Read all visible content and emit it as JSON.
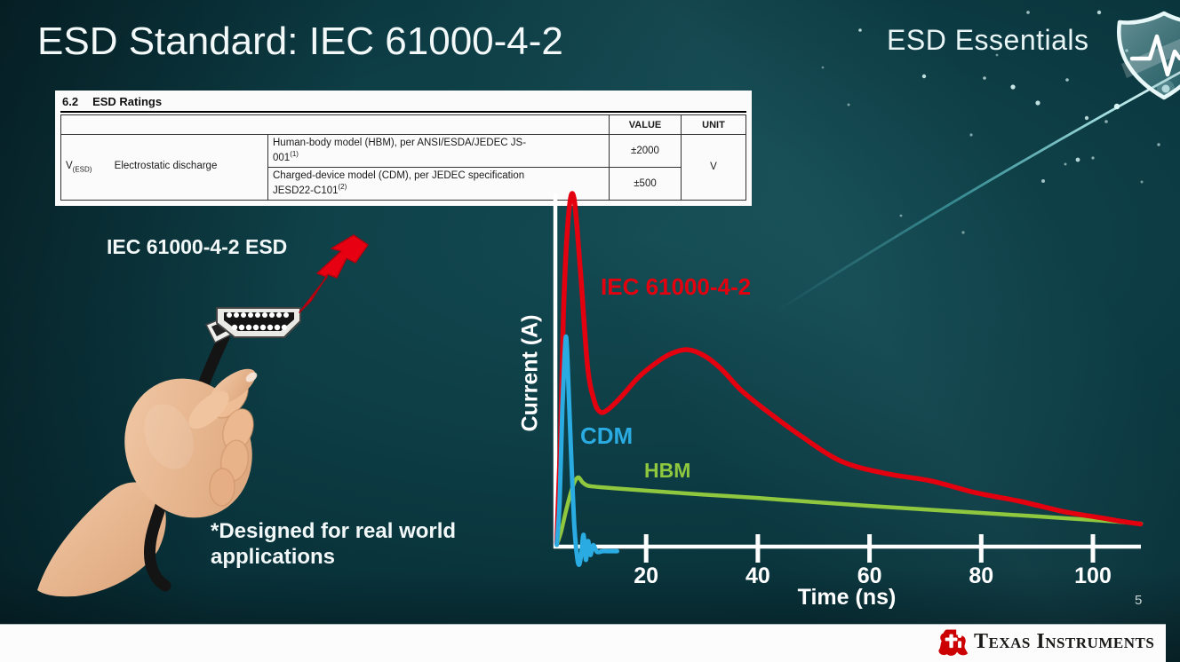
{
  "slide": {
    "title": "ESD Standard: IEC 61000-4-2",
    "program_badge": "ESD Essentials",
    "page_number": "5",
    "footnote_line1": "*Designed for real world",
    "footnote_line2": "applications",
    "footer_brand": "Texas Instruments"
  },
  "ratings_table": {
    "section": "6.2",
    "section_title": "ESD Ratings",
    "col_headers": [
      "VALUE",
      "UNIT"
    ],
    "symbol": "V",
    "symbol_sub": "(ESD)",
    "row_label": "Electrostatic discharge",
    "rows": [
      {
        "description": "Human-body model (HBM), per ANSI/ESDA/JEDEC JS-001",
        "sup": "(1)",
        "value": "±2000"
      },
      {
        "description": "Charged-device model (CDM), per JEDEC specification JESD22-C101",
        "sup": "(2)",
        "value": "±500"
      }
    ],
    "unit": "V"
  },
  "illustration": {
    "label": "IEC 61000-4-2 ESD",
    "icons": [
      "lightning-bolt-icon",
      "hdmi-connector-graphic",
      "hand-graphic"
    ]
  },
  "badge_icon": "shield-pulse-icon",
  "footer_icon": "ti-texas-logo-icon",
  "colors": {
    "background_teal": "#0d3c44",
    "iec_red": "#e3000f",
    "cdm_blue": "#2aabe2",
    "hbm_green": "#8fc73e",
    "bolt_red": "#e60012",
    "brand_red": "#cc0000",
    "footer_bg": "#fcfcfc",
    "text_white": "#f3f9f9"
  },
  "chart_data": {
    "type": "line",
    "title": "",
    "xlabel": "Time (ns)",
    "ylabel": "Current (A)",
    "x_ticks": [
      20,
      40,
      60,
      80,
      100
    ],
    "xlim": [
      0,
      110
    ],
    "grid": false,
    "legend": "inline-labels",
    "amplitude_units": "relative (y axis unlabeled)",
    "series": [
      {
        "name": "IEC 61000-4-2",
        "color": "#e3000f",
        "t": [
          4.0,
          4.6,
          5.3,
          6.2,
          7.1,
          8.2,
          9.5,
          10.7,
          11.7,
          13.0,
          15.5,
          18.5,
          21.5,
          24.5,
          27.5,
          30.5,
          33.5,
          37,
          42,
          48,
          55,
          63,
          71,
          79,
          87,
          95,
          101,
          105,
          108.5
        ],
        "y": [
          0.01,
          0.28,
          0.72,
          0.97,
          1.0,
          0.8,
          0.52,
          0.42,
          0.388,
          0.392,
          0.43,
          0.485,
          0.525,
          0.555,
          0.566,
          0.548,
          0.51,
          0.45,
          0.385,
          0.315,
          0.245,
          0.21,
          0.189,
          0.155,
          0.13,
          0.1,
          0.084,
          0.073,
          0.065
        ]
      },
      {
        "name": "CDM",
        "color": "#2aabe2",
        "t": [
          4.0,
          4.5,
          5.0,
          5.4,
          5.7,
          6.1,
          6.6,
          7.1,
          7.6,
          8.0,
          8.4,
          8.8,
          9.2,
          9.6,
          10.0,
          10.5,
          11.2,
          12.2,
          13.4,
          14.8
        ],
        "y": [
          0.005,
          0.13,
          0.4,
          0.55,
          0.6,
          0.46,
          0.25,
          0.07,
          -0.025,
          -0.052,
          -0.018,
          0.034,
          -0.038,
          0.016,
          -0.024,
          0.004,
          -0.015,
          -0.013,
          -0.013,
          -0.013
        ]
      },
      {
        "name": "HBM",
        "color": "#8fc73e",
        "t": [
          4.0,
          4.8,
          5.6,
          6.5,
          7.3,
          7.9,
          8.6,
          9.4,
          10.4,
          11.8,
          14,
          20,
          30,
          40,
          50,
          60,
          70,
          80,
          90,
          100,
          105,
          108.6
        ],
        "y": [
          0.005,
          0.045,
          0.1,
          0.155,
          0.19,
          0.199,
          0.185,
          0.176,
          0.173,
          0.171,
          0.168,
          0.161,
          0.15,
          0.14,
          0.128,
          0.117,
          0.107,
          0.097,
          0.087,
          0.0765,
          0.071,
          0.066
        ]
      }
    ]
  }
}
